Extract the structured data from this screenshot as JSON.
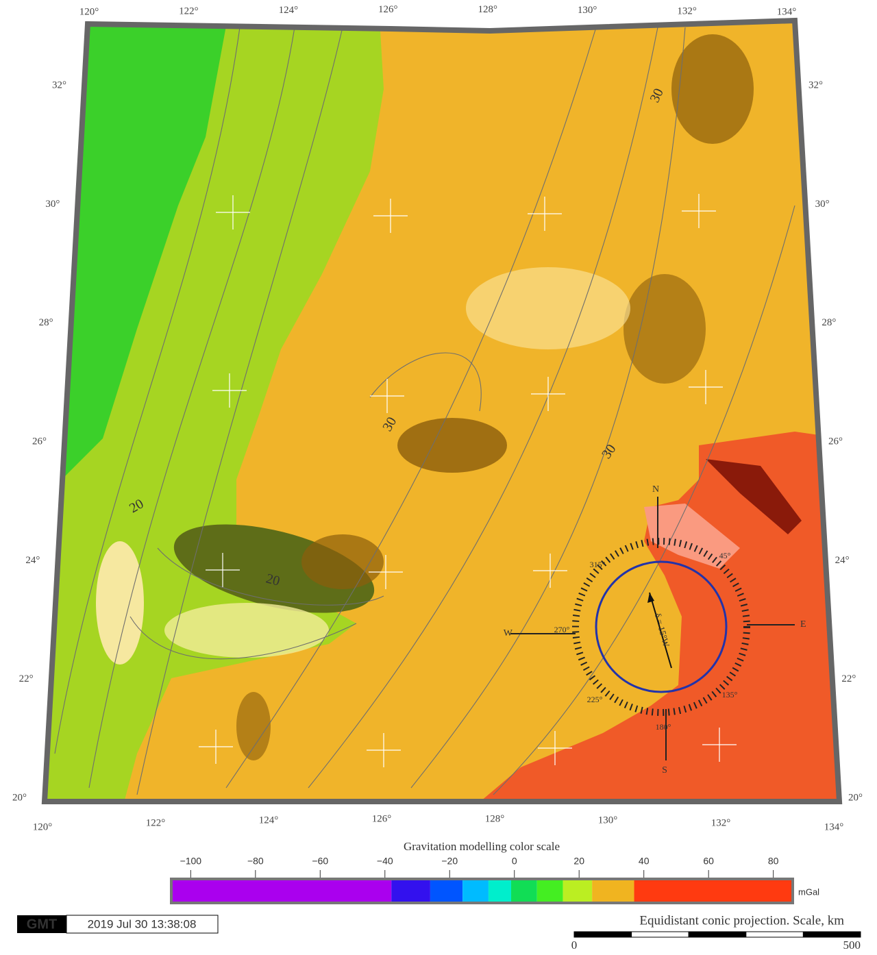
{
  "map": {
    "lon_top": [
      {
        "value": 120,
        "label": "120°"
      },
      {
        "value": 122,
        "label": "122°"
      },
      {
        "value": 124,
        "label": "124°"
      },
      {
        "value": 126,
        "label": "126°"
      },
      {
        "value": 128,
        "label": "128°"
      },
      {
        "value": 130,
        "label": "130°"
      },
      {
        "value": 132,
        "label": "132°"
      },
      {
        "value": 134,
        "label": "134°"
      }
    ],
    "lon_bottom": [
      {
        "value": 120,
        "label": "120°"
      },
      {
        "value": 122,
        "label": "122°"
      },
      {
        "value": 124,
        "label": "124°"
      },
      {
        "value": 126,
        "label": "126°"
      },
      {
        "value": 128,
        "label": "128°"
      },
      {
        "value": 130,
        "label": "130°"
      },
      {
        "value": 132,
        "label": "132°"
      },
      {
        "value": 134,
        "label": "134°"
      }
    ],
    "lat_left": [
      {
        "value": 20,
        "label": "20°"
      },
      {
        "value": 22,
        "label": "22°"
      },
      {
        "value": 24,
        "label": "24°"
      },
      {
        "value": 26,
        "label": "26°"
      },
      {
        "value": 28,
        "label": "28°"
      },
      {
        "value": 30,
        "label": "30°"
      },
      {
        "value": 32,
        "label": "32°"
      }
    ],
    "lat_right": [
      {
        "value": 20,
        "label": "20°"
      },
      {
        "value": 22,
        "label": "22°"
      },
      {
        "value": 24,
        "label": "24°"
      },
      {
        "value": 26,
        "label": "26°"
      },
      {
        "value": 28,
        "label": "28°"
      },
      {
        "value": 30,
        "label": "30°"
      },
      {
        "value": 32,
        "label": "32°"
      }
    ],
    "contour_labels": [
      "30",
      "30",
      "30",
      "20",
      "20"
    ],
    "compass": {
      "north": "N",
      "south": "S",
      "east": "E",
      "west": "W",
      "declination": "δ = 15°W",
      "degrees": [
        "315°",
        "45°",
        "135°",
        "225°",
        "270°",
        "180°"
      ]
    }
  },
  "colorbar": {
    "title": "Gravitation modelling color scale",
    "unit": "mGal",
    "range": [
      -106,
      86
    ],
    "ticks": [
      {
        "value": -100,
        "label": "−100"
      },
      {
        "value": -80,
        "label": "−80"
      },
      {
        "value": -60,
        "label": "−60"
      },
      {
        "value": -40,
        "label": "−40"
      },
      {
        "value": -20,
        "label": "−20"
      },
      0,
      20,
      40,
      60,
      80
    ],
    "bounds": [
      -106,
      -38,
      -26,
      -16,
      -8,
      -1,
      7,
      15,
      24,
      37,
      86
    ],
    "colors": [
      "#aa00ee",
      "#3311ee",
      "#0055ff",
      "#00bbff",
      "#00eecc",
      "#11dd55",
      "#44ee22",
      "#bbee22",
      "#f0b420",
      "#ff3a10"
    ]
  },
  "footer": {
    "logo": "GMT",
    "timestamp": "2019 Jul 30 13:38:08",
    "projection": "Equidistant conic projection. Scale, km",
    "scale_ticks": [
      0,
      500
    ]
  }
}
